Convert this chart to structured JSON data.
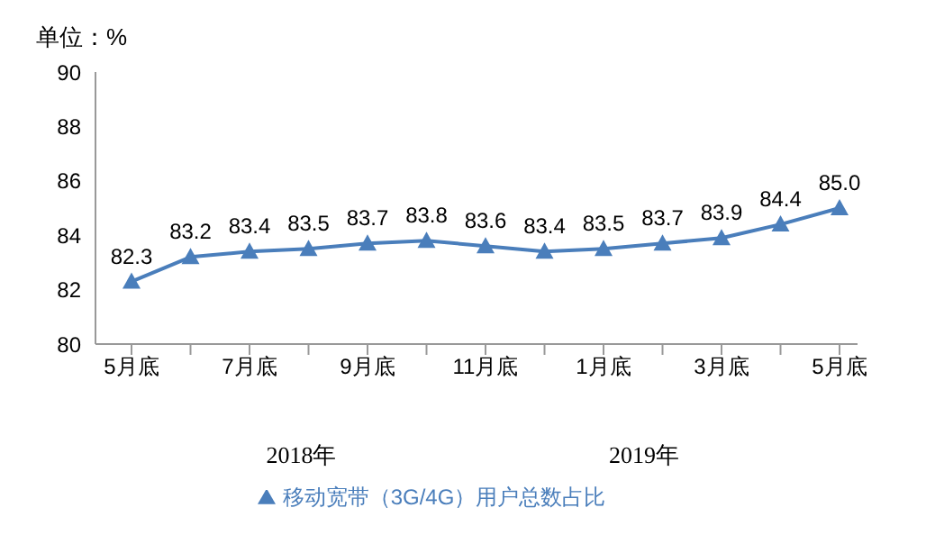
{
  "chart_data": {
    "type": "line",
    "title": "单位：%",
    "categories": [
      "5月底",
      null,
      "7月底",
      null,
      "9月底",
      null,
      "11月底",
      null,
      "1月底",
      null,
      "3月底",
      null,
      "5月底"
    ],
    "series": [
      {
        "name": "移动宽带（3G/4G）用户总数占比",
        "color": "#4a7ebb",
        "values": [
          82.3,
          83.2,
          83.4,
          83.5,
          83.7,
          83.8,
          83.6,
          83.4,
          83.5,
          83.7,
          83.9,
          84.4,
          85.0
        ],
        "value_labels": [
          "82.3",
          "83.2",
          "83.4",
          "83.5",
          "83.7",
          "83.8",
          "83.6",
          "83.4",
          "83.5",
          "83.7",
          "83.9",
          "84.4",
          "85.0"
        ]
      }
    ],
    "ylim": [
      80,
      90
    ],
    "yticks": [
      80,
      82,
      84,
      86,
      88,
      90
    ],
    "annotations": [
      "2018年",
      "2019年"
    ],
    "grid": false,
    "legend": "bottom",
    "marker": "triangle",
    "line_style": "solid"
  }
}
